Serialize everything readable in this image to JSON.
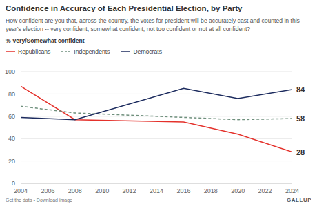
{
  "chart_data": {
    "type": "line",
    "title": "Confidence in Accuracy of Each Presidential Election, by Party",
    "subtitle": "How confident are you that, across the country, the votes for president will be accurately cast and counted in this year's election -- very confident, somewhat confident, not too confident or not at all confident?",
    "y_label": "% Very/Somewhat confident",
    "x": [
      2004,
      2008,
      2016,
      2020,
      2024
    ],
    "series": [
      {
        "name": "Republicans",
        "color": "#e4312b",
        "line_style": "solid",
        "values": [
          87,
          57,
          55,
          44,
          28
        ],
        "value_labels": [
          null,
          null,
          null,
          null,
          "28"
        ]
      },
      {
        "name": "Independents",
        "color": "#6e8f7c",
        "line_style": "dashed",
        "values": [
          69,
          63,
          59,
          57,
          58
        ],
        "value_labels": [
          null,
          null,
          null,
          null,
          "58"
        ]
      },
      {
        "name": "Democrats",
        "color": "#1c2b5e",
        "line_style": "solid",
        "values": [
          59,
          57,
          85,
          76,
          84
        ],
        "value_labels": [
          null,
          null,
          null,
          null,
          "84"
        ]
      }
    ],
    "xlim": [
      2004,
      2024
    ],
    "xticks": [
      2004,
      2006,
      2008,
      2010,
      2012,
      2014,
      2016,
      2018,
      2020,
      2022,
      2024
    ],
    "ylim": [
      0,
      100
    ],
    "yticks": [
      0,
      20,
      40,
      60,
      80,
      100
    ],
    "grid": true,
    "legend": "top left",
    "footer": "Get the data • Download image",
    "source": "GALLUP"
  }
}
